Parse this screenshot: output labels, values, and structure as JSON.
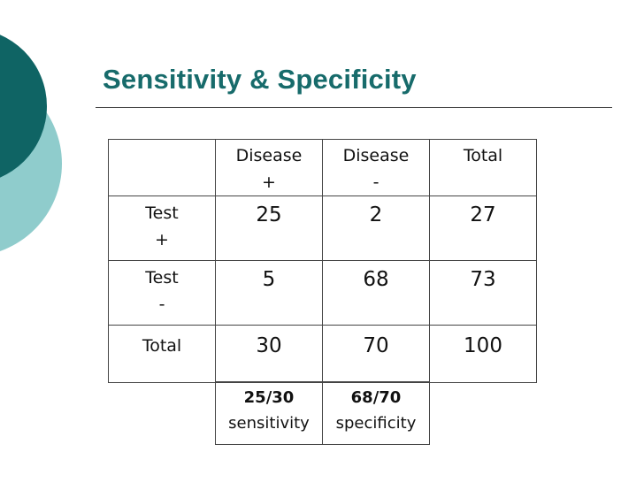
{
  "slide": {
    "title": "Sensitivity & Specificity",
    "colors": {
      "title": "#176b6b",
      "deco_dark": "#0f6464",
      "deco_light": "#8fcccc"
    }
  },
  "table": {
    "header": {
      "disease_pos": [
        "Disease",
        "+"
      ],
      "disease_neg": [
        "Disease",
        "-"
      ],
      "total": "Total"
    },
    "rows": [
      {
        "label": [
          "Test",
          "+"
        ],
        "disease_pos": "25",
        "disease_neg": "2",
        "total": "27"
      },
      {
        "label": [
          "Test",
          "-"
        ],
        "disease_pos": "5",
        "disease_neg": "68",
        "total": "73"
      },
      {
        "label": [
          "Total"
        ],
        "disease_pos": "30",
        "disease_neg": "70",
        "total": "100"
      }
    ]
  },
  "summary": {
    "sensitivity": {
      "fraction": "25/30",
      "label": "sensitivity"
    },
    "specificity": {
      "fraction": "68/70",
      "label": "specificity"
    }
  }
}
